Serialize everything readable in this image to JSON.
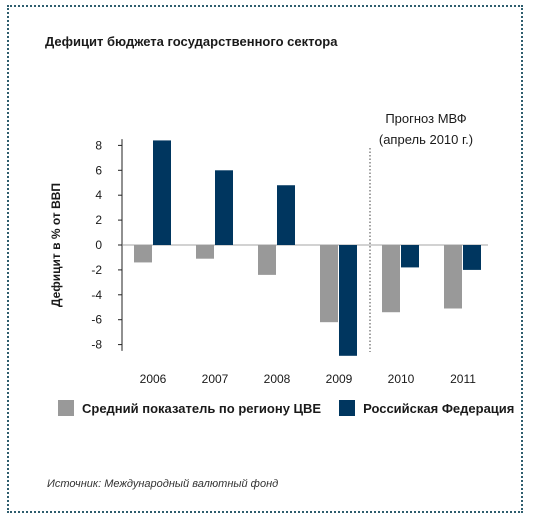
{
  "chart_data": {
    "type": "bar",
    "title": "Дефицит бюджета государственного сектора",
    "ylabel": "Дефицит в % от ВВП",
    "xlabel": "",
    "categories": [
      "2006",
      "2007",
      "2008",
      "2009",
      "2010",
      "2011"
    ],
    "series": [
      {
        "name": "Средний показатель по региону ЦВЕ",
        "color": "#999999",
        "values": [
          -1.4,
          -1.1,
          -2.4,
          -6.2,
          -5.4,
          -5.1
        ]
      },
      {
        "name": "Российская Федерация",
        "color": "#00365f",
        "values": [
          8.4,
          6.0,
          4.8,
          -8.9,
          -1.8,
          -2.0
        ]
      }
    ],
    "ylim": [
      -8.5,
      8.5
    ],
    "yticks": [
      8,
      6,
      4,
      2,
      0,
      -2,
      -4,
      -6,
      -8
    ],
    "forecast_label_line1": "Прогноз МВФ",
    "forecast_label_line2": "(апрель 2010 г.)",
    "forecast_divider_after_category": "2009",
    "legend_position": "bottom",
    "grid": false
  },
  "source_note": "Источник: Международный валютный фонд"
}
